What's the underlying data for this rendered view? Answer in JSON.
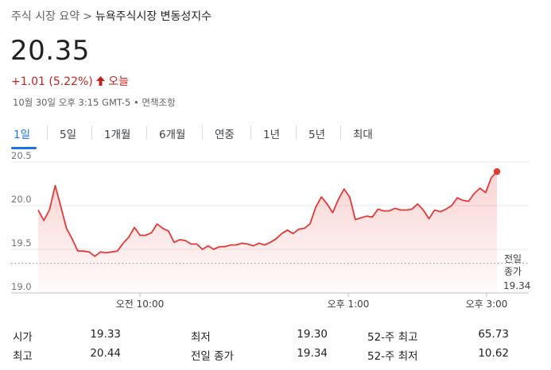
{
  "breadcrumb": {
    "root": "주식 시장 요약",
    "separator": ">",
    "current": "뉴욕주식시장 변동성지수"
  },
  "quote": {
    "price": "20.35",
    "change": "+1.01 (5.22%)",
    "direction_icon": "up-arrow-icon",
    "period": "오늘",
    "meta": "10월 30일 오후 3:15 GMT-5 • 면책조항"
  },
  "tabs": [
    {
      "label": "1일",
      "active": true
    },
    {
      "label": "5일"
    },
    {
      "label": "1개월"
    },
    {
      "label": "6개월"
    },
    {
      "label": "연중"
    },
    {
      "label": "1년"
    },
    {
      "label": "5년"
    },
    {
      "label": "최대"
    }
  ],
  "colors": {
    "line": "#e53935",
    "negative_text": "#c5221f",
    "accent": "#1a73e8",
    "grid": "#e8eaed",
    "reference": "#9aa0a6"
  },
  "chart_data": {
    "type": "area",
    "ylim": [
      19.0,
      20.5
    ],
    "yticks": [
      "20.5",
      "20.0",
      "19.5",
      "19.0"
    ],
    "xticks": [
      "오전 10:00",
      "오후 1:00",
      "오후 3:00"
    ],
    "previous_close": {
      "label": "전일\n종가",
      "value": "19.34"
    },
    "series": [
      {
        "values": [
          19.95,
          19.83,
          19.95,
          20.23,
          19.99,
          19.74,
          19.62,
          19.48,
          19.48,
          19.47,
          19.42,
          19.47,
          19.46,
          19.47,
          19.48,
          19.57,
          19.64,
          19.75,
          19.66,
          19.66,
          19.69,
          19.79,
          19.74,
          19.71,
          19.58,
          19.61,
          19.6,
          19.56,
          19.56,
          19.5,
          19.54,
          19.5,
          19.53,
          19.53,
          19.55,
          19.55,
          19.57,
          19.56,
          19.54,
          19.57,
          19.55,
          19.58,
          19.62,
          19.68,
          19.72,
          19.68,
          19.73,
          19.74,
          19.79,
          19.98,
          20.1,
          20.02,
          19.92,
          20.07,
          20.19,
          20.1,
          19.84,
          19.86,
          19.88,
          19.87,
          19.96,
          19.94,
          19.94,
          19.97,
          19.95,
          19.95,
          19.96,
          20.02,
          19.95,
          19.85,
          19.95,
          19.93,
          19.96,
          20.0,
          20.09,
          20.06,
          20.05,
          20.14,
          20.2,
          20.15,
          20.32,
          20.39
        ]
      }
    ]
  },
  "stats": [
    {
      "label": "시가",
      "value": "19.33"
    },
    {
      "label": "최저",
      "value": "19.30"
    },
    {
      "label": "52-주 최고",
      "value": "65.73"
    },
    {
      "label": "최고",
      "value": "20.44"
    },
    {
      "label": "전일 종가",
      "value": "19.34"
    },
    {
      "label": "52-주 최저",
      "value": "10.62"
    }
  ]
}
